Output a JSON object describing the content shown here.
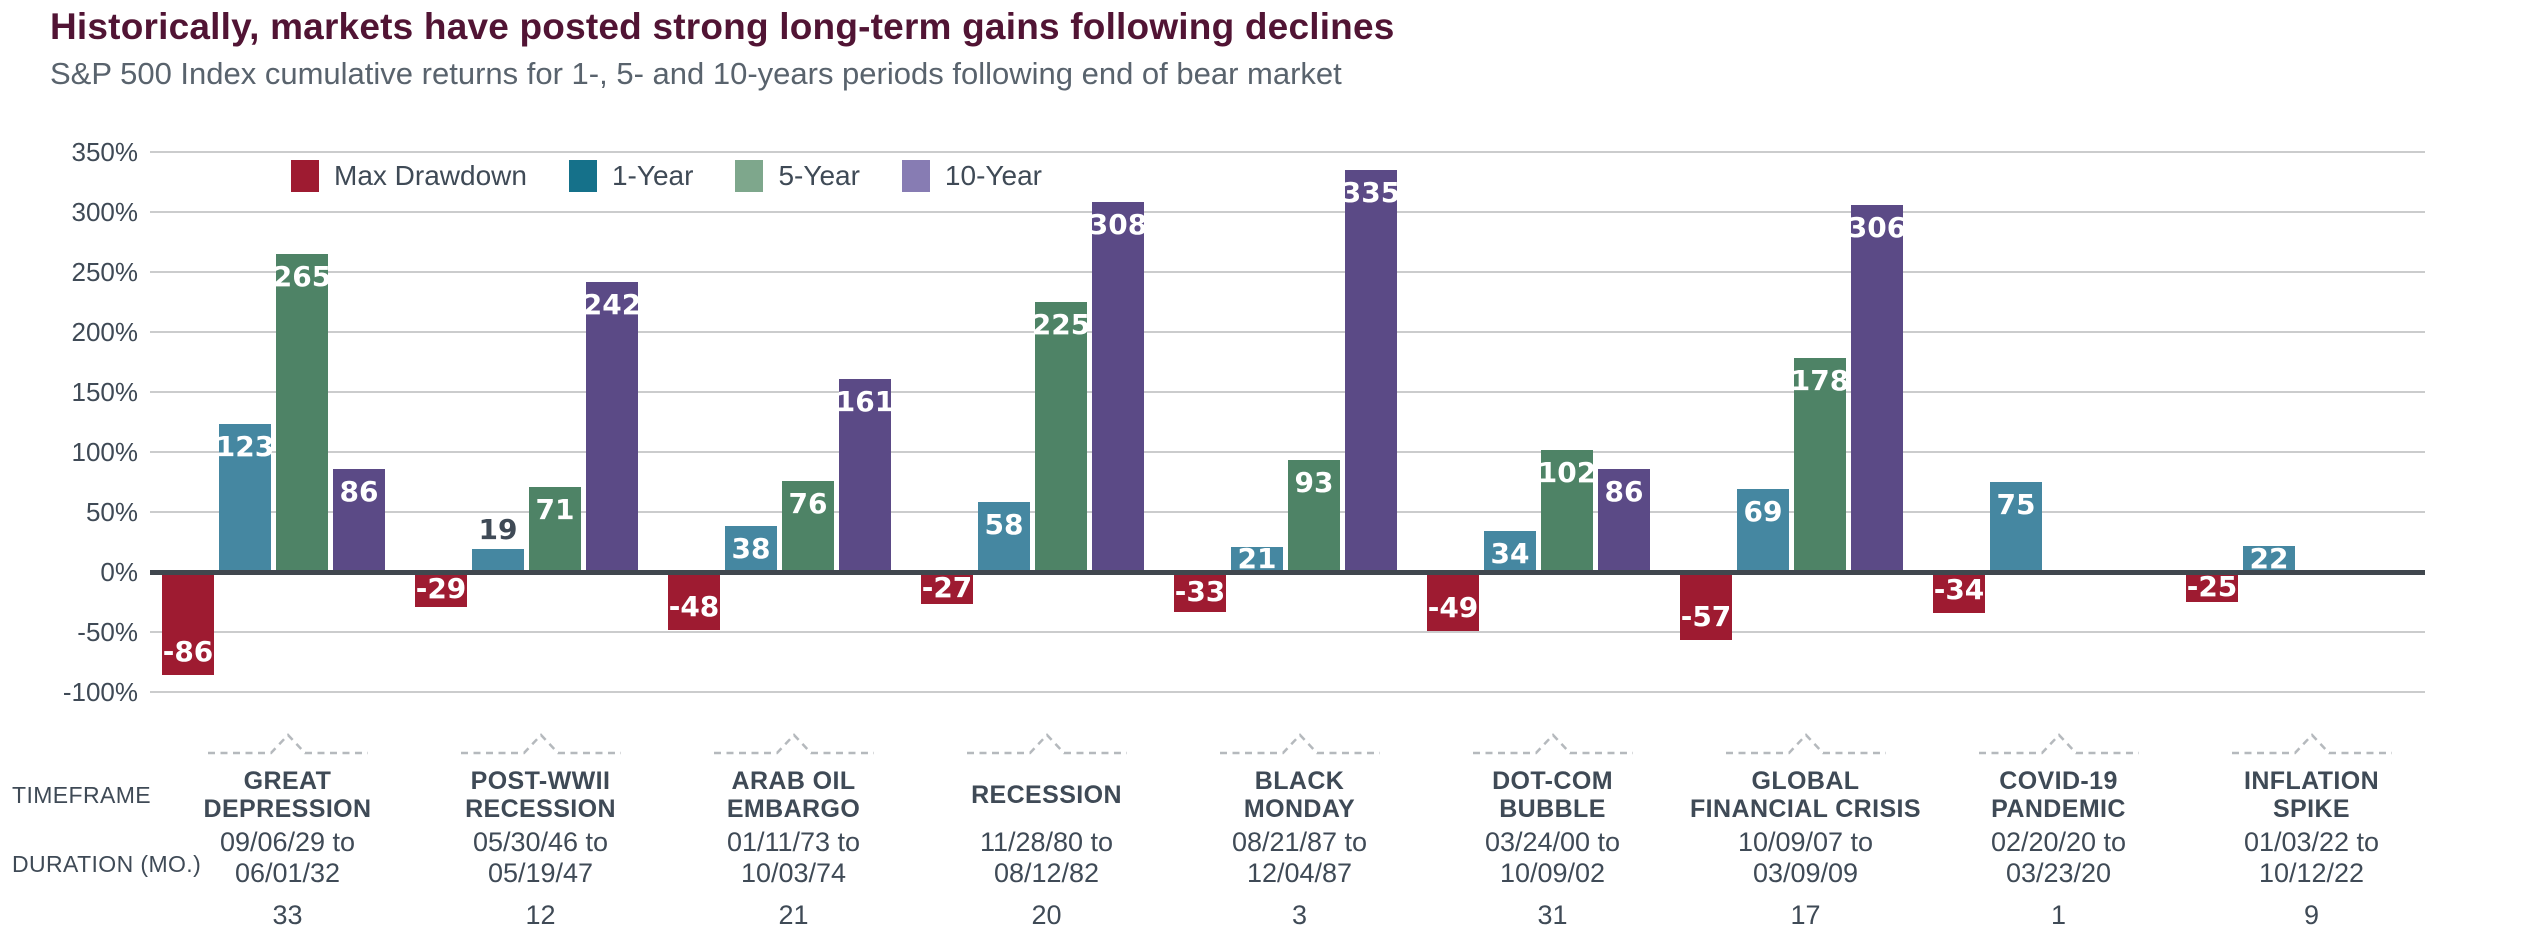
{
  "colors": {
    "title": "#511434",
    "subtitle": "#59636d",
    "text": "#3f4a56",
    "axis_line": "#40474e",
    "gridline": "#cbcccd",
    "bracket": "#b5b9bd",
    "bar_label_light": "#ffffff"
  },
  "row_labels": {
    "timeframe": "TIMEFRAME",
    "duration": "DURATION (MO.)"
  },
  "chart_data": {
    "type": "bar",
    "title": "Historically, markets have posted strong long-term gains following declines",
    "subtitle": "S&P 500 Index cumulative returns for 1-, 5- and 10-years periods following end of bear market",
    "xlabel": "",
    "ylabel": "",
    "ylim": [
      -100,
      350
    ],
    "ytick_step": 50,
    "ytick_suffix": "%",
    "grid": true,
    "legend_position": "top-left",
    "series": [
      {
        "name": "Max Drawdown",
        "bar_color": "#9e1b31",
        "legend_color": "#9e1b31"
      },
      {
        "name": "1-Year",
        "bar_color": "#4587a1",
        "legend_color": "#15718a"
      },
      {
        "name": "5-Year",
        "bar_color": "#4e8366",
        "legend_color": "#7ea78c"
      },
      {
        "name": "10-Year",
        "bar_color": "#5b4a86",
        "legend_color": "#877cb3"
      }
    ],
    "groups": [
      {
        "name": "GREAT DEPRESSION",
        "name_lines": [
          "GREAT",
          "DEPRESSION"
        ],
        "timeframe_from": "09/06/29",
        "timeframe_to": "06/01/32",
        "duration_months": 33,
        "values": [
          -86,
          123,
          265,
          86
        ]
      },
      {
        "name": "POST-WWII RECESSION",
        "name_lines": [
          "POST-WWII",
          "RECESSION"
        ],
        "timeframe_from": "05/30/46",
        "timeframe_to": "05/19/47",
        "duration_months": 12,
        "values": [
          -29,
          19,
          71,
          242
        ]
      },
      {
        "name": "ARAB OIL EMBARGO",
        "name_lines": [
          "ARAB OIL",
          "EMBARGO"
        ],
        "timeframe_from": "01/11/73",
        "timeframe_to": "10/03/74",
        "duration_months": 21,
        "values": [
          -48,
          38,
          76,
          161
        ]
      },
      {
        "name": "RECESSION",
        "name_lines": [
          "RECESSION"
        ],
        "timeframe_from": "11/28/80",
        "timeframe_to": "08/12/82",
        "duration_months": 20,
        "values": [
          -27,
          58,
          225,
          308
        ]
      },
      {
        "name": "BLACK MONDAY",
        "name_lines": [
          "BLACK",
          "MONDAY"
        ],
        "timeframe_from": "08/21/87",
        "timeframe_to": "12/04/87",
        "duration_months": 3,
        "values": [
          -33,
          21,
          93,
          335
        ]
      },
      {
        "name": "DOT-COM BUBBLE",
        "name_lines": [
          "DOT-COM",
          "BUBBLE"
        ],
        "timeframe_from": "03/24/00",
        "timeframe_to": "10/09/02",
        "duration_months": 31,
        "values": [
          -49,
          34,
          102,
          86
        ]
      },
      {
        "name": "GLOBAL FINANCIAL CRISIS",
        "name_lines": [
          "GLOBAL",
          "FINANCIAL CRISIS"
        ],
        "timeframe_from": "10/09/07",
        "timeframe_to": "03/09/09",
        "duration_months": 17,
        "values": [
          -57,
          69,
          178,
          306
        ]
      },
      {
        "name": "COVID-19 PANDEMIC",
        "name_lines": [
          "COVID-19",
          "PANDEMIC"
        ],
        "timeframe_from": "02/20/20",
        "timeframe_to": "03/23/20",
        "duration_months": 1,
        "values": [
          -34,
          75,
          null,
          null
        ]
      },
      {
        "name": "INFLATION SPIKE",
        "name_lines": [
          "INFLATION",
          "SPIKE"
        ],
        "timeframe_from": "01/03/22",
        "timeframe_to": "10/12/22",
        "duration_months": 9,
        "values": [
          -25,
          22,
          null,
          null
        ]
      }
    ]
  }
}
